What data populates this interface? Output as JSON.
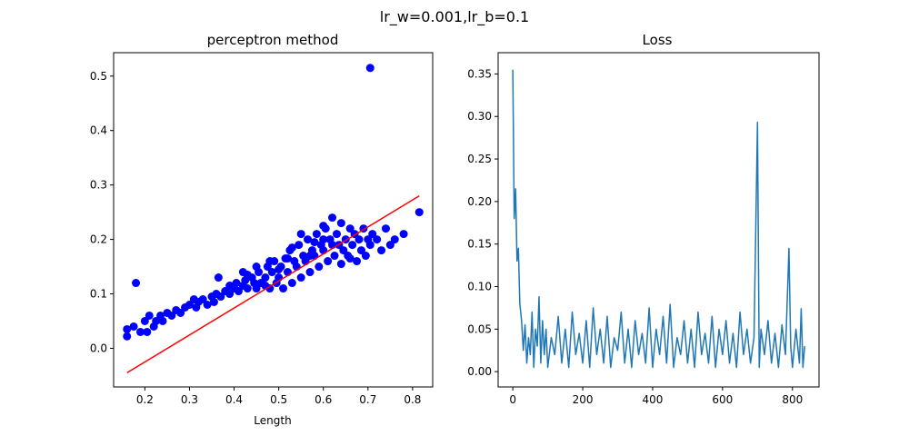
{
  "figure": {
    "suptitle": "lr_w=0.001,lr_b=0.1"
  },
  "chart_data": [
    {
      "type": "scatter",
      "title": "perceptron method",
      "xlabel": "Length",
      "ylabel": "",
      "xlim": [
        0.13,
        0.845
      ],
      "ylim": [
        -0.071,
        0.543
      ],
      "xticks": [
        0.2,
        0.3,
        0.4,
        0.5,
        0.6,
        0.7,
        0.8
      ],
      "xtick_labels": [
        "0.2",
        "0.3",
        "0.4",
        "0.5",
        "0.6",
        "0.7",
        "0.8"
      ],
      "yticks": [
        0.0,
        0.1,
        0.2,
        0.3,
        0.4,
        0.5
      ],
      "ytick_labels": [
        "0.0",
        "0.1",
        "0.2",
        "0.3",
        "0.4",
        "0.5"
      ],
      "grid": false,
      "point_color": "#0000ff",
      "line_color": "#ff0000",
      "points": [
        [
          0.16,
          0.035
        ],
        [
          0.16,
          0.022
        ],
        [
          0.175,
          0.04
        ],
        [
          0.18,
          0.12
        ],
        [
          0.19,
          0.03
        ],
        [
          0.2,
          0.05
        ],
        [
          0.205,
          0.03
        ],
        [
          0.21,
          0.06
        ],
        [
          0.22,
          0.04
        ],
        [
          0.225,
          0.05
        ],
        [
          0.235,
          0.06
        ],
        [
          0.24,
          0.05
        ],
        [
          0.25,
          0.065
        ],
        [
          0.26,
          0.06
        ],
        [
          0.27,
          0.07
        ],
        [
          0.28,
          0.065
        ],
        [
          0.29,
          0.075
        ],
        [
          0.3,
          0.08
        ],
        [
          0.31,
          0.09
        ],
        [
          0.315,
          0.075
        ],
        [
          0.32,
          0.085
        ],
        [
          0.33,
          0.09
        ],
        [
          0.34,
          0.08
        ],
        [
          0.35,
          0.095
        ],
        [
          0.355,
          0.085
        ],
        [
          0.36,
          0.1
        ],
        [
          0.365,
          0.13
        ],
        [
          0.37,
          0.095
        ],
        [
          0.38,
          0.105
        ],
        [
          0.39,
          0.1
        ],
        [
          0.4,
          0.11
        ],
        [
          0.405,
          0.12
        ],
        [
          0.41,
          0.105
        ],
        [
          0.42,
          0.115
        ],
        [
          0.425,
          0.125
        ],
        [
          0.43,
          0.11
        ],
        [
          0.44,
          0.13
        ],
        [
          0.445,
          0.12
        ],
        [
          0.45,
          0.11
        ],
        [
          0.455,
          0.14
        ],
        [
          0.46,
          0.12
        ],
        [
          0.47,
          0.13
        ],
        [
          0.475,
          0.15
        ],
        [
          0.48,
          0.11
        ],
        [
          0.485,
          0.14
        ],
        [
          0.49,
          0.16
        ],
        [
          0.495,
          0.12
        ],
        [
          0.5,
          0.13
        ],
        [
          0.505,
          0.15
        ],
        [
          0.51,
          0.11
        ],
        [
          0.515,
          0.165
        ],
        [
          0.52,
          0.14
        ],
        [
          0.525,
          0.18
        ],
        [
          0.53,
          0.12
        ],
        [
          0.535,
          0.16
        ],
        [
          0.54,
          0.15
        ],
        [
          0.545,
          0.19
        ],
        [
          0.55,
          0.13
        ],
        [
          0.555,
          0.17
        ],
        [
          0.56,
          0.16
        ],
        [
          0.565,
          0.2
        ],
        [
          0.57,
          0.14
        ],
        [
          0.575,
          0.18
        ],
        [
          0.58,
          0.17
        ],
        [
          0.585,
          0.21
        ],
        [
          0.59,
          0.15
        ],
        [
          0.595,
          0.19
        ],
        [
          0.6,
          0.18
        ],
        [
          0.605,
          0.22
        ],
        [
          0.61,
          0.16
        ],
        [
          0.615,
          0.2
        ],
        [
          0.62,
          0.24
        ],
        [
          0.625,
          0.17
        ],
        [
          0.63,
          0.21
        ],
        [
          0.635,
          0.19
        ],
        [
          0.64,
          0.23
        ],
        [
          0.645,
          0.18
        ],
        [
          0.65,
          0.2
        ],
        [
          0.655,
          0.17
        ],
        [
          0.66,
          0.22
        ],
        [
          0.665,
          0.19
        ],
        [
          0.67,
          0.21
        ],
        [
          0.675,
          0.16
        ],
        [
          0.68,
          0.2
        ],
        [
          0.685,
          0.18
        ],
        [
          0.69,
          0.22
        ],
        [
          0.695,
          0.17
        ],
        [
          0.7,
          0.2
        ],
        [
          0.705,
          0.19
        ],
        [
          0.71,
          0.21
        ],
        [
          0.72,
          0.2
        ],
        [
          0.73,
          0.18
        ],
        [
          0.74,
          0.22
        ],
        [
          0.75,
          0.19
        ],
        [
          0.76,
          0.2
        ],
        [
          0.78,
          0.21
        ],
        [
          0.815,
          0.25
        ],
        [
          0.705,
          0.515
        ],
        [
          0.6,
          0.225
        ],
        [
          0.55,
          0.21
        ],
        [
          0.45,
          0.15
        ],
        [
          0.48,
          0.16
        ],
        [
          0.42,
          0.14
        ],
        [
          0.58,
          0.195
        ],
        [
          0.62,
          0.19
        ],
        [
          0.66,
          0.165
        ],
        [
          0.64,
          0.155
        ],
        [
          0.57,
          0.17
        ],
        [
          0.5,
          0.145
        ],
        [
          0.52,
          0.165
        ],
        [
          0.47,
          0.115
        ],
        [
          0.43,
          0.135
        ],
        [
          0.39,
          0.115
        ],
        [
          0.53,
          0.185
        ],
        [
          0.6,
          0.2
        ]
      ],
      "line": {
        "x": [
          0.16,
          0.815
        ],
        "y": [
          -0.045,
          0.28
        ]
      }
    },
    {
      "type": "line",
      "title": "Loss",
      "xlabel": "",
      "ylabel": "",
      "xlim": [
        -42,
        876
      ],
      "ylim": [
        -0.018,
        0.375
      ],
      "xticks": [
        0,
        200,
        400,
        600,
        800
      ],
      "xtick_labels": [
        "0",
        "200",
        "400",
        "600",
        "800"
      ],
      "yticks": [
        0.0,
        0.05,
        0.1,
        0.15,
        0.2,
        0.25,
        0.3,
        0.35
      ],
      "ytick_labels": [
        "0.00",
        "0.05",
        "0.10",
        "0.15",
        "0.20",
        "0.25",
        "0.30",
        "0.35"
      ],
      "grid": false,
      "line_color": "#1f77b4",
      "series": [
        {
          "x": [
            0,
            4,
            8,
            12,
            16,
            20,
            25,
            30,
            35,
            40,
            45,
            50,
            55,
            60,
            65,
            70,
            75,
            80,
            85,
            90,
            95,
            100,
            110,
            120,
            130,
            140,
            150,
            160,
            170,
            180,
            190,
            200,
            210,
            220,
            230,
            240,
            250,
            260,
            270,
            280,
            290,
            300,
            310,
            320,
            330,
            340,
            350,
            360,
            370,
            380,
            390,
            400,
            410,
            420,
            430,
            440,
            450,
            460,
            470,
            480,
            490,
            500,
            510,
            520,
            530,
            540,
            550,
            560,
            570,
            580,
            590,
            600,
            610,
            620,
            630,
            640,
            650,
            660,
            670,
            680,
            690,
            700,
            705,
            710,
            720,
            730,
            740,
            750,
            760,
            770,
            780,
            790,
            795,
            800,
            810,
            820,
            825,
            830,
            835
          ],
          "y": [
            0.355,
            0.18,
            0.215,
            0.13,
            0.145,
            0.08,
            0.06,
            0.025,
            0.055,
            0.01,
            0.04,
            0.02,
            0.07,
            0.005,
            0.05,
            0.03,
            0.088,
            0.01,
            0.06,
            0.02,
            0.05,
            0.005,
            0.04,
            0.02,
            0.065,
            0.01,
            0.05,
            0.005,
            0.07,
            0.02,
            0.045,
            0.01,
            0.06,
            0.005,
            0.075,
            0.02,
            0.05,
            0.01,
            0.065,
            0.005,
            0.04,
            0.025,
            0.07,
            0.01,
            0.05,
            0.005,
            0.06,
            0.02,
            0.045,
            0.01,
            0.075,
            0.005,
            0.05,
            0.02,
            0.065,
            0.01,
            0.079,
            0.005,
            0.04,
            0.02,
            0.06,
            0.01,
            0.05,
            0.005,
            0.07,
            0.02,
            0.045,
            0.01,
            0.065,
            0.005,
            0.05,
            0.02,
            0.06,
            0.01,
            0.045,
            0.005,
            0.07,
            0.02,
            0.05,
            0.01,
            0.04,
            0.293,
            0.005,
            0.05,
            0.02,
            0.06,
            0.01,
            0.045,
            0.005,
            0.055,
            0.02,
            0.145,
            0.03,
            0.005,
            0.05,
            0.01,
            0.074,
            0.005,
            0.03
          ]
        }
      ]
    }
  ]
}
